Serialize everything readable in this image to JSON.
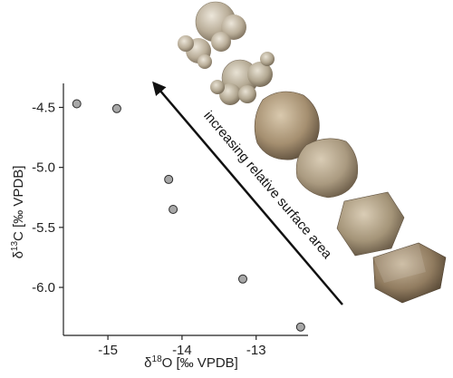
{
  "chart_data": {
    "type": "scatter",
    "xlabel": {
      "prefix": "δ",
      "sup": "18",
      "main": "O  [‰ VPDB]"
    },
    "ylabel": {
      "prefix": "δ",
      "sup": "13",
      "main": "C  [‰ VPDB]"
    },
    "xlim": [
      -15.6,
      -12.3
    ],
    "ylim": [
      -6.4,
      -4.3
    ],
    "xticks": [
      -15,
      -14,
      -13
    ],
    "yticks": [
      -4.5,
      -5.0,
      -5.5,
      -6.0
    ],
    "xtick_labels": [
      "-15",
      "-14",
      "-13"
    ],
    "ytick_labels": [
      "-4.5",
      "-5.0",
      "-5.5",
      "-6.0"
    ],
    "grid": false,
    "points": [
      {
        "x": -15.42,
        "y": -4.47
      },
      {
        "x": -14.88,
        "y": -4.51
      },
      {
        "x": -14.18,
        "y": -5.1
      },
      {
        "x": -14.12,
        "y": -5.35
      },
      {
        "x": -13.18,
        "y": -5.93
      },
      {
        "x": -12.4,
        "y": -6.33
      }
    ],
    "marker_color": "#a7a7a7",
    "annotation": "increasing relative surface area",
    "arrow_color": "#111111"
  },
  "crystals": [
    {
      "name": "crystal-image-1",
      "colors": [
        "#ece6da",
        "#b9ad98",
        "#7a6d5a"
      ]
    },
    {
      "name": "crystal-image-2",
      "colors": [
        "#e8e2d4",
        "#b2a791",
        "#6e624f"
      ]
    },
    {
      "name": "crystal-image-3",
      "colors": [
        "#d9c9ae",
        "#a58f70",
        "#5d4e3c"
      ]
    },
    {
      "name": "crystal-image-4",
      "colors": [
        "#d9ccb5",
        "#aa9a80",
        "#6a5b47"
      ]
    },
    {
      "name": "crystal-image-5",
      "colors": [
        "#dacdb6",
        "#a49478",
        "#5f513f"
      ]
    },
    {
      "name": "crystal-image-6",
      "colors": [
        "#c8b79c",
        "#917c60",
        "#4e402f"
      ]
    }
  ]
}
